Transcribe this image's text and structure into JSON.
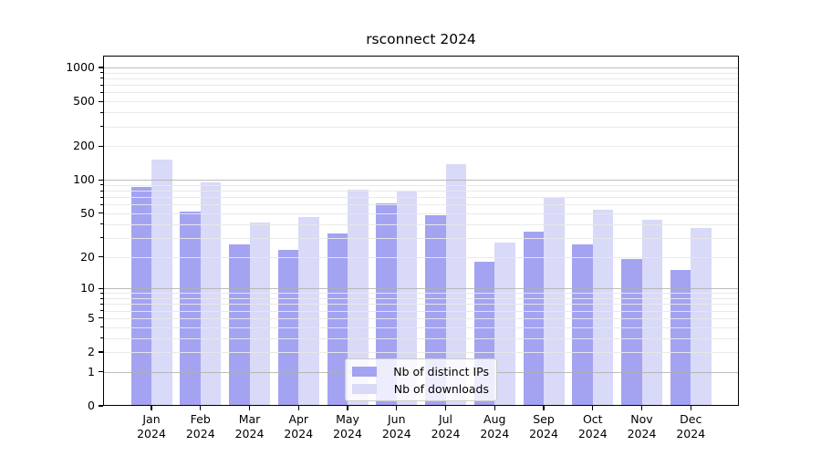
{
  "title": "rsconnect 2024",
  "chart_data": {
    "type": "bar",
    "title": "rsconnect 2024",
    "categories": [
      "Jan 2024",
      "Feb 2024",
      "Mar 2024",
      "Apr 2024",
      "May 2024",
      "Jun 2024",
      "Jul 2024",
      "Aug 2024",
      "Sep 2024",
      "Oct 2024",
      "Nov 2024",
      "Dec 2024"
    ],
    "series": [
      {
        "name": "Nb of distinct IPs",
        "color": "#a3a3f2",
        "values": [
          86,
          52,
          26,
          23,
          33,
          61,
          48,
          18,
          34,
          26,
          19,
          15
        ]
      },
      {
        "name": "Nb of downloads",
        "color": "#d9d9f8",
        "values": [
          153,
          95,
          41,
          46,
          82,
          78,
          138,
          27,
          69,
          54,
          44,
          37
        ]
      }
    ],
    "xlabel": "",
    "ylabel": "",
    "yscale": "log1p",
    "yticks": [
      0,
      1,
      2,
      5,
      10,
      20,
      50,
      100,
      200,
      500,
      1000
    ],
    "ylim": [
      0,
      1270
    ],
    "grid": "major and minor horizontal gridlines, drawn over bars",
    "legend_position": "lower center"
  },
  "colors": {
    "major_grid": "#b0b0b0",
    "minor_grid": "#e8e8e8",
    "spine": "#000000",
    "background": "#ffffff"
  }
}
